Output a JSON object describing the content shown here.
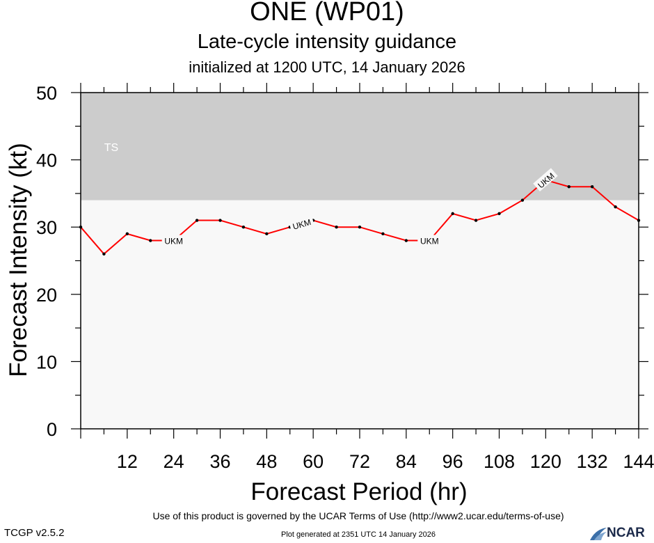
{
  "header": {
    "storm": "ONE (WP01)",
    "subtitle": "Late-cycle intensity guidance",
    "init": "initialized at 1200 UTC, 14 January 2026"
  },
  "footer": {
    "terms": "Use of this product is governed by the UCAR Terms of Use (http://www2.ucar.edu/terms-of-use)",
    "generated": "Plot generated at 2351 UTC   14 January 2026",
    "version": "TCGP v2.5.2",
    "logo": "NCAR"
  },
  "colors": {
    "ts_band": "#cccccc",
    "plot_bg": "#f8f8f8",
    "series": "#ff0000",
    "points": "#000000"
  },
  "chart_data": {
    "type": "line",
    "xlabel": "Forecast Period (hr)",
    "ylabel": "Forecast Intensity (kt)",
    "xlim": [
      0,
      144
    ],
    "ylim": [
      0,
      50
    ],
    "xticks": [
      12,
      24,
      36,
      48,
      60,
      72,
      84,
      96,
      108,
      120,
      132,
      144
    ],
    "yticks": [
      0,
      10,
      20,
      30,
      40,
      50
    ],
    "grid": false,
    "bands": [
      {
        "label": "TS",
        "from": 34,
        "to": 50
      }
    ],
    "series": [
      {
        "name": "UKM",
        "x": [
          0,
          6,
          12,
          18,
          24,
          30,
          36,
          42,
          48,
          54,
          60,
          66,
          72,
          78,
          84,
          90,
          96,
          102,
          108,
          114,
          120,
          126,
          132,
          138,
          144
        ],
        "y": [
          30,
          26,
          29,
          28,
          28,
          31,
          31,
          30,
          29,
          30,
          31,
          30,
          30,
          29,
          28,
          28,
          32,
          31,
          32,
          34,
          37,
          36,
          36,
          33,
          31
        ],
        "label_at": [
          24,
          57,
          90,
          120
        ]
      }
    ]
  }
}
